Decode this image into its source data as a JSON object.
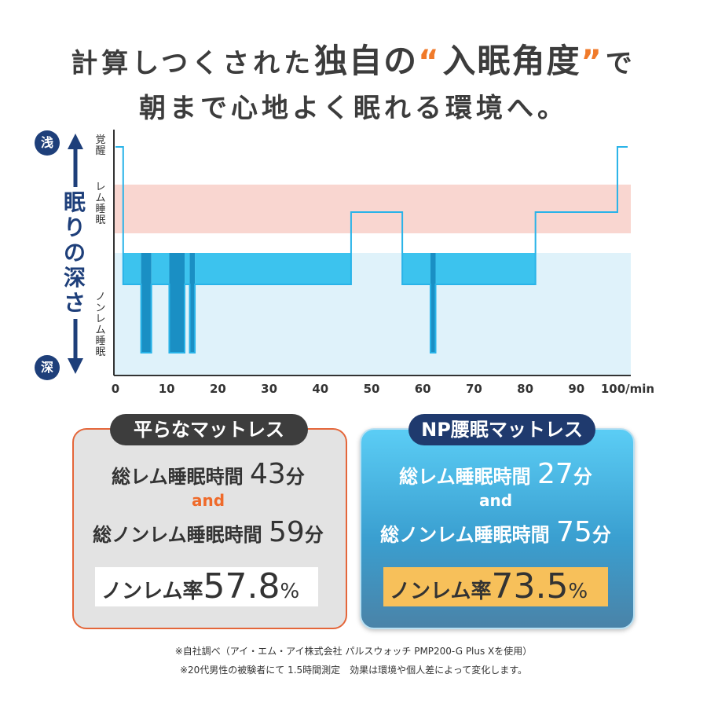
{
  "headline": {
    "line1_a": "計算しつくされた",
    "line1_b": "独自の",
    "line1_q_open": "“",
    "line1_c": "入眠角度",
    "line1_q_close": "”",
    "line1_d": "で",
    "line2": "朝まで心地よく眠れる環境へ。"
  },
  "axis": {
    "title": "眠りの深さ",
    "shallow": "浅",
    "deep": "深",
    "arrow_up": "up-arrow-icon",
    "arrow_down": "down-arrow-icon",
    "stage_awake": "覚醒",
    "stage_rem": "レム睡眠",
    "stage_nonrem": "ノンレム睡眠"
  },
  "chart_data": {
    "type": "line",
    "xlabel": "",
    "xunit": "100/min",
    "xticks": [
      0,
      10,
      20,
      30,
      40,
      50,
      60,
      70,
      80,
      90,
      100
    ],
    "xlim": [
      0,
      100
    ],
    "levels": [
      "深",
      "ノンレム睡眠",
      "レム睡眠",
      "覚醒"
    ],
    "series": [
      {
        "x": [
          0,
          1.5,
          1.5,
          5,
          5,
          7,
          7,
          10.5,
          10.5,
          13.5,
          13.5,
          14.5,
          14.5,
          15.5,
          15.5,
          46,
          46,
          56,
          56,
          61.5,
          61.5,
          62.5,
          62.5,
          82,
          82,
          98,
          98,
          100
        ],
        "y": [
          3,
          3,
          1,
          1,
          0,
          0,
          1,
          1,
          0,
          0,
          1,
          1,
          0,
          0,
          1,
          1,
          2,
          2,
          1,
          1,
          0,
          0,
          1,
          1,
          2,
          2,
          3,
          3
        ]
      }
    ],
    "bands": [
      "レム睡眠",
      "ノンレム睡眠"
    ],
    "colors": {
      "line": "#29b3e8",
      "rem_band": "#f9d6d0",
      "nonrem_band": "#dff2fa",
      "fill_dark": "#1a8fc4",
      "fill_light": "#3cc3ee"
    }
  },
  "left_panel": {
    "tab": "平らなマットレス",
    "rem_label": "総レム睡眠時間",
    "rem_value": "43",
    "rem_unit": "分",
    "and": "and",
    "nonrem_label": "総ノンレム睡眠時間",
    "nonrem_value": "59",
    "nonrem_unit": "分",
    "rate_label": "ノンレム率",
    "rate_value": "57.8",
    "rate_unit": "%"
  },
  "right_panel": {
    "tab": "NP腰眠マットレス",
    "rem_label": "総レム睡眠時間",
    "rem_value": "27",
    "rem_unit": "分",
    "and": "and",
    "nonrem_label": "総ノンレム睡眠時間",
    "nonrem_value": "75",
    "nonrem_unit": "分",
    "rate_label": "ノンレム率",
    "rate_value": "73.5",
    "rate_unit": "%"
  },
  "notes": {
    "line1": "※自社調べ（アイ・エム・アイ株式会社 パルスウォッチ PMP200-G Plus Xを使用）",
    "line2": "※20代男性の被験者にて 1.5時間測定　効果は環境や個人差によって変化します。"
  }
}
